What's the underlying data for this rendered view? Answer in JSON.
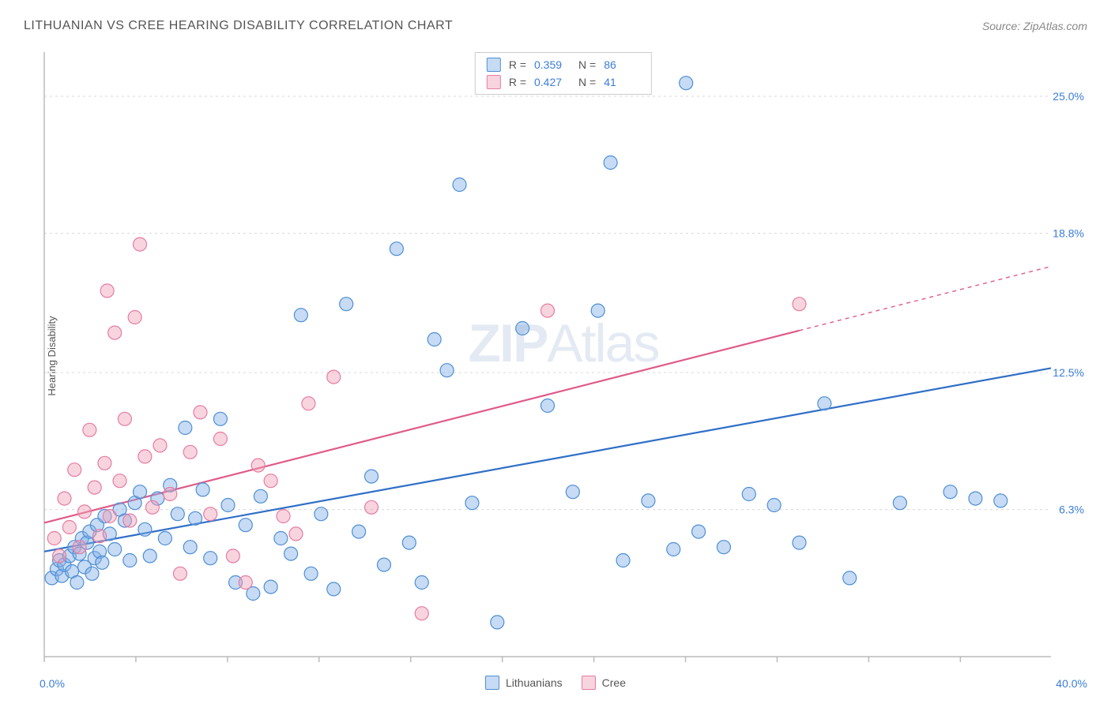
{
  "header": {
    "title": "LITHUANIAN VS CREE HEARING DISABILITY CORRELATION CHART",
    "source_label": "Source: ",
    "source_value": "ZipAtlas.com"
  },
  "watermark": {
    "bold": "ZIP",
    "light": "Atlas"
  },
  "chart": {
    "type": "scatter",
    "background_color": "#ffffff",
    "grid_color": "#d8d8d8",
    "axis_line_color": "#bbbbbb",
    "tick_color": "#bbbbbb",
    "y_axis_label": "Hearing Disability",
    "xlim": [
      0,
      40
    ],
    "ylim": [
      0,
      27
    ],
    "x_tick_step": 3.64,
    "y_gridlines": [
      6.3,
      12.5,
      18.8,
      25.0
    ],
    "y_tick_labels": [
      "6.3%",
      "12.5%",
      "18.8%",
      "25.0%"
    ],
    "x_min_label": "0.0%",
    "x_max_label": "40.0%",
    "axis_label_color": "#3b7dd8",
    "axis_label_fontsize": 14,
    "marker_radius": 8.5,
    "marker_stroke_width": 1.2,
    "trend_line_width": 2.2,
    "series": [
      {
        "name": "Lithuanians",
        "fill_color": "rgba(130,175,230,0.45)",
        "stroke_color": "#4d8fd6",
        "trend_color": "#2f6fc7",
        "trend_start": [
          0,
          4.4
        ],
        "trend_end": [
          40,
          12.7
        ],
        "trend_dashed_from": 40,
        "R": "0.359",
        "N": "86",
        "points": [
          [
            0.3,
            3.2
          ],
          [
            0.5,
            3.6
          ],
          [
            0.6,
            4.0
          ],
          [
            0.7,
            3.3
          ],
          [
            0.8,
            3.8
          ],
          [
            1.0,
            4.2
          ],
          [
            1.1,
            3.5
          ],
          [
            1.2,
            4.6
          ],
          [
            1.3,
            3.0
          ],
          [
            1.4,
            4.3
          ],
          [
            1.5,
            5.0
          ],
          [
            1.6,
            3.7
          ],
          [
            1.7,
            4.8
          ],
          [
            1.8,
            5.3
          ],
          [
            1.9,
            3.4
          ],
          [
            2.0,
            4.1
          ],
          [
            2.1,
            5.6
          ],
          [
            2.2,
            4.4
          ],
          [
            2.3,
            3.9
          ],
          [
            2.4,
            6.0
          ],
          [
            2.6,
            5.2
          ],
          [
            2.8,
            4.5
          ],
          [
            3.0,
            6.3
          ],
          [
            3.2,
            5.8
          ],
          [
            3.4,
            4.0
          ],
          [
            3.6,
            6.6
          ],
          [
            3.8,
            7.1
          ],
          [
            4.0,
            5.4
          ],
          [
            4.2,
            4.2
          ],
          [
            4.5,
            6.8
          ],
          [
            4.8,
            5.0
          ],
          [
            5.0,
            7.4
          ],
          [
            5.3,
            6.1
          ],
          [
            5.6,
            10.0
          ],
          [
            5.8,
            4.6
          ],
          [
            6.0,
            5.9
          ],
          [
            6.3,
            7.2
          ],
          [
            6.6,
            4.1
          ],
          [
            7.0,
            10.4
          ],
          [
            7.3,
            6.5
          ],
          [
            7.6,
            3.0
          ],
          [
            8.0,
            5.6
          ],
          [
            8.3,
            2.5
          ],
          [
            8.6,
            6.9
          ],
          [
            9.0,
            2.8
          ],
          [
            9.4,
            5.0
          ],
          [
            9.8,
            4.3
          ],
          [
            10.2,
            15.1
          ],
          [
            10.6,
            3.4
          ],
          [
            11.0,
            6.1
          ],
          [
            11.5,
            2.7
          ],
          [
            12.0,
            15.6
          ],
          [
            12.5,
            5.3
          ],
          [
            13.0,
            7.8
          ],
          [
            13.5,
            3.8
          ],
          [
            14.0,
            18.1
          ],
          [
            14.5,
            4.8
          ],
          [
            15.0,
            3.0
          ],
          [
            15.5,
            14.0
          ],
          [
            16.0,
            12.6
          ],
          [
            16.5,
            21.0
          ],
          [
            17.0,
            6.6
          ],
          [
            18.0,
            1.2
          ],
          [
            19.0,
            14.5
          ],
          [
            20.0,
            11.0
          ],
          [
            21.0,
            7.1
          ],
          [
            22.0,
            15.3
          ],
          [
            22.5,
            22.0
          ],
          [
            23.0,
            4.0
          ],
          [
            24.0,
            6.7
          ],
          [
            25.0,
            4.5
          ],
          [
            25.5,
            25.6
          ],
          [
            26.0,
            5.3
          ],
          [
            27.0,
            4.6
          ],
          [
            28.0,
            7.0
          ],
          [
            29.0,
            6.5
          ],
          [
            30.0,
            4.8
          ],
          [
            31.0,
            11.1
          ],
          [
            32.0,
            3.2
          ],
          [
            34.0,
            6.6
          ],
          [
            36.0,
            7.1
          ],
          [
            37.0,
            6.8
          ],
          [
            38.0,
            6.7
          ]
        ]
      },
      {
        "name": "Cree",
        "fill_color": "rgba(240,160,185,0.45)",
        "stroke_color": "#e77ca0",
        "trend_color": "#e05a88",
        "trend_start": [
          0,
          5.7
        ],
        "trend_end": [
          40,
          17.3
        ],
        "trend_dashed_from": 30,
        "R": "0.427",
        "N": "41",
        "points": [
          [
            0.4,
            5.0
          ],
          [
            0.6,
            4.2
          ],
          [
            0.8,
            6.8
          ],
          [
            1.0,
            5.5
          ],
          [
            1.2,
            8.1
          ],
          [
            1.4,
            4.6
          ],
          [
            1.6,
            6.2
          ],
          [
            1.8,
            9.9
          ],
          [
            2.0,
            7.3
          ],
          [
            2.2,
            5.1
          ],
          [
            2.4,
            8.4
          ],
          [
            2.5,
            16.2
          ],
          [
            2.6,
            6.0
          ],
          [
            2.8,
            14.3
          ],
          [
            3.0,
            7.6
          ],
          [
            3.2,
            10.4
          ],
          [
            3.4,
            5.8
          ],
          [
            3.6,
            15.0
          ],
          [
            3.8,
            18.3
          ],
          [
            4.0,
            8.7
          ],
          [
            4.3,
            6.4
          ],
          [
            4.6,
            9.2
          ],
          [
            5.0,
            7.0
          ],
          [
            5.4,
            3.4
          ],
          [
            5.8,
            8.9
          ],
          [
            6.2,
            10.7
          ],
          [
            6.6,
            6.1
          ],
          [
            7.0,
            9.5
          ],
          [
            7.5,
            4.2
          ],
          [
            8.0,
            3.0
          ],
          [
            8.5,
            8.3
          ],
          [
            9.0,
            7.6
          ],
          [
            9.5,
            6.0
          ],
          [
            10.0,
            5.2
          ],
          [
            10.5,
            11.1
          ],
          [
            11.5,
            12.3
          ],
          [
            13.0,
            6.4
          ],
          [
            15.0,
            1.6
          ],
          [
            20.0,
            15.3
          ],
          [
            30.0,
            15.6
          ]
        ]
      }
    ],
    "stats_box": {
      "r_label": "R",
      "n_label": "N",
      "eq": "="
    },
    "legend_labels": [
      "Lithuanians",
      "Cree"
    ]
  }
}
